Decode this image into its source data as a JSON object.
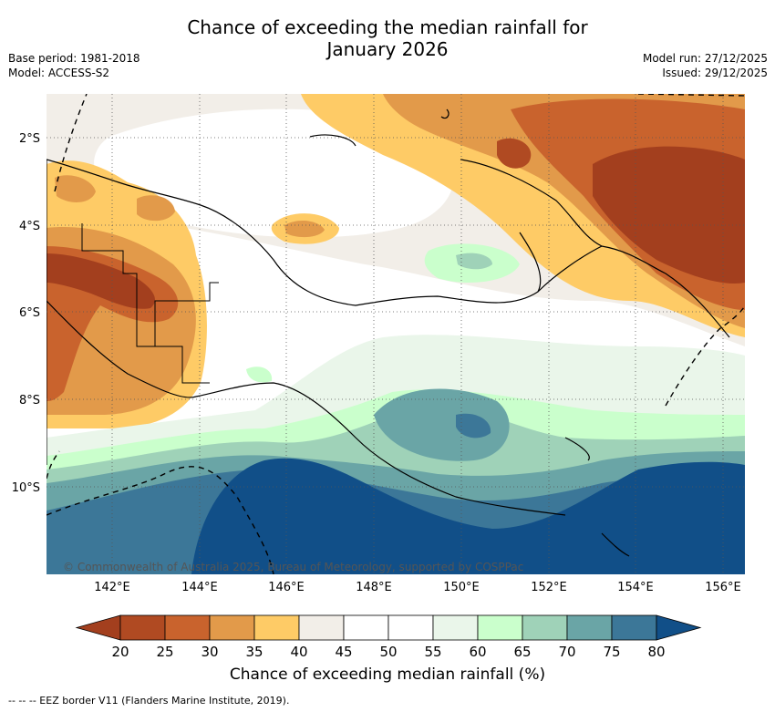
{
  "header": {
    "title_line1": "Chance of exceeding the median rainfall for",
    "title_line2": "January 2026",
    "base_period": "Base period: 1981-2018",
    "model": "Model: ACCESS-S2",
    "model_run": "Model run: 27/12/2025",
    "issued": "Issued: 29/12/2025"
  },
  "map": {
    "lat_labels": [
      "2°S",
      "4°S",
      "6°S",
      "8°S",
      "10°S"
    ],
    "lon_labels": [
      "142°E",
      "144°E",
      "146°E",
      "148°E",
      "150°E",
      "152°E",
      "154°E",
      "156°E"
    ],
    "copyright": "© Commonwealth of Australia 2025, Bureau of Meteorology, supported by COSPPac"
  },
  "colorbar": {
    "ticks": [
      "20",
      "25",
      "30",
      "35",
      "40",
      "45",
      "50",
      "55",
      "60",
      "65",
      "70",
      "75",
      "80"
    ],
    "colors": [
      "#a33f1e",
      "#b04a22",
      "#c9632d",
      "#e29a4a",
      "#fecb66",
      "#f2eee8",
      "#ffffff",
      "#ffffff",
      "#eaf6ea",
      "#caffcc",
      "#9fd2b8",
      "#6aa5a6",
      "#3c7798",
      "#114f88"
    ],
    "title": "Chance of exceeding median rainfall (%)"
  },
  "footer": {
    "legend": "--  --  -- EEZ border V11 (Flanders Marine Institute, 2019)."
  }
}
